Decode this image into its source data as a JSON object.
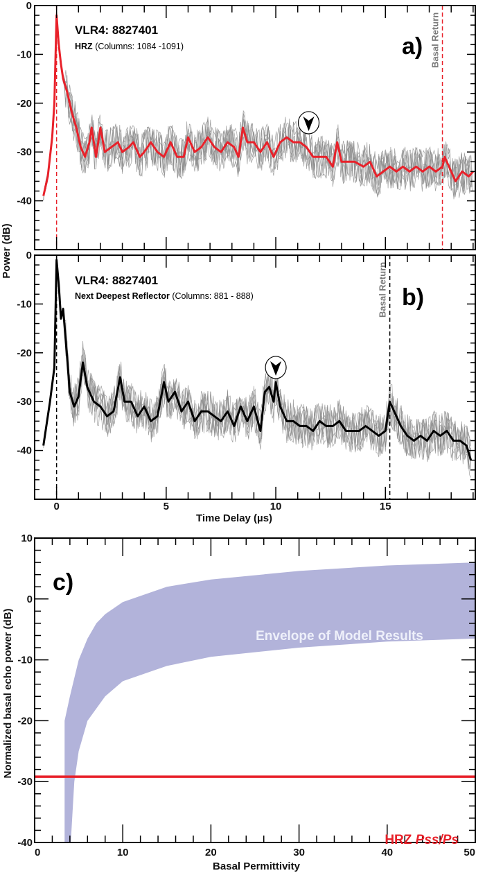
{
  "ylabel_shared": "Power (dB)",
  "xlabel_time": "Time Delay (µs)",
  "colors": {
    "red": "#e8212a",
    "black": "#000000",
    "grey": "#8a8a8a",
    "envelope": "#b2b3da",
    "basal_gray": "#7a7a7a"
  },
  "chart_data": [
    {
      "type": "line",
      "panel": "a)",
      "title": "VLR4: 8827401",
      "subtitle_bold": "HRZ",
      "subtitle": "(Columns: 1084 -1091)",
      "xlabel": "Time Delay (µs)",
      "ylabel": "Power (dB)",
      "xlim": [
        -1,
        19.1
      ],
      "ylim": [
        -50,
        0
      ],
      "yticks": [
        0,
        -10,
        -20,
        -30,
        -40
      ],
      "annotation": "Basal Return",
      "basal_return_x": 17.6,
      "surface_x": 0,
      "arrow_marker": [
        11.5,
        -24
      ],
      "n_individual_traces": 8,
      "mean_series": {
        "name": "mean",
        "x": [
          -0.6,
          -0.4,
          -0.2,
          -0.1,
          0,
          0.1,
          0.2,
          0.3,
          0.5,
          0.7,
          0.9,
          1.1,
          1.3,
          1.5,
          1.6,
          1.8,
          2.0,
          2.2,
          2.5,
          2.8,
          3.0,
          3.3,
          3.5,
          3.8,
          4.0,
          4.3,
          4.6,
          4.9,
          5.2,
          5.5,
          5.8,
          6.0,
          6.3,
          6.6,
          6.9,
          7.2,
          7.5,
          7.8,
          8.1,
          8.3,
          8.5,
          8.7,
          9.0,
          9.3,
          9.6,
          9.9,
          10.2,
          10.5,
          10.8,
          11.1,
          11.4,
          11.7,
          12.0,
          12.3,
          12.6,
          12.8,
          13.0,
          13.3,
          13.6,
          14.0,
          14.3,
          14.6,
          14.9,
          15.2,
          15.5,
          15.8,
          16.1,
          16.4,
          16.7,
          17.0,
          17.3,
          17.6,
          17.7,
          17.9,
          18.2,
          18.5,
          18.8,
          19.0
        ],
        "y": [
          -39,
          -35,
          -27,
          -20,
          -2,
          -8,
          -12,
          -15,
          -18,
          -22,
          -25,
          -29,
          -31,
          -28,
          -25,
          -31,
          -25,
          -30,
          -29,
          -28,
          -30,
          -29,
          -28,
          -31,
          -30,
          -28,
          -30,
          -31,
          -28,
          -31,
          -31,
          -27,
          -30,
          -29,
          -27,
          -29,
          -30,
          -28,
          -29,
          -31,
          -25,
          -28,
          -28,
          -30,
          -28,
          -31,
          -28,
          -27,
          -28,
          -28,
          -29,
          -31,
          -31,
          -31,
          -33,
          -28,
          -32,
          -32,
          -32,
          -33,
          -32,
          -35,
          -34,
          -33,
          -34,
          -33,
          -34,
          -33,
          -34,
          -33,
          -34,
          -33,
          -31,
          -33,
          -36,
          -34,
          -35,
          -34
        ]
      }
    },
    {
      "type": "line",
      "panel": "b)",
      "title": "VLR4: 8827401",
      "subtitle_bold": "Next Deepest Reflector",
      "subtitle": "(Columns: 881 - 888)",
      "xlabel": "Time Delay (µs)",
      "ylabel": "Power (dB)",
      "xlim": [
        -1,
        19.1
      ],
      "ylim": [
        -50,
        0
      ],
      "yticks": [
        0,
        -10,
        -20,
        -30,
        -40
      ],
      "xticks": [
        0,
        5,
        10,
        15
      ],
      "annotation": "Basal Return",
      "basal_return_x": 15.2,
      "surface_x": 0,
      "arrow_marker": [
        10,
        -23
      ],
      "n_individual_traces": 8,
      "mean_series": {
        "name": "mean",
        "x": [
          -0.6,
          -0.3,
          -0.1,
          0,
          0.1,
          0.2,
          0.3,
          0.5,
          0.6,
          0.8,
          1.0,
          1.2,
          1.4,
          1.7,
          2.0,
          2.3,
          2.6,
          2.9,
          3.1,
          3.4,
          3.7,
          4.0,
          4.3,
          4.6,
          4.9,
          5.1,
          5.4,
          5.7,
          6.0,
          6.3,
          6.6,
          6.9,
          7.2,
          7.5,
          7.8,
          8.1,
          8.4,
          8.7,
          9.0,
          9.3,
          9.5,
          9.7,
          9.9,
          10.0,
          10.2,
          10.5,
          10.8,
          11.1,
          11.4,
          11.7,
          12.0,
          12.3,
          12.6,
          12.9,
          13.2,
          13.5,
          13.8,
          14.1,
          14.4,
          14.7,
          15.0,
          15.2,
          15.4,
          15.7,
          16.0,
          16.3,
          16.6,
          16.9,
          17.2,
          17.5,
          17.8,
          18.1,
          18.4,
          18.7,
          18.9
        ],
        "y": [
          -39,
          -30,
          -23,
          -1,
          -6,
          -13,
          -11,
          -22,
          -28,
          -31,
          -29,
          -22,
          -27,
          -30,
          -31,
          -33,
          -32,
          -25,
          -30,
          -30,
          -33,
          -31,
          -34,
          -33,
          -26,
          -30,
          -28,
          -32,
          -30,
          -34,
          -32,
          -32,
          -33,
          -34,
          -32,
          -35,
          -31,
          -34,
          -31,
          -36,
          -28,
          -27,
          -30,
          -26,
          -31,
          -34,
          -34,
          -35,
          -35,
          -36,
          -34,
          -35,
          -35,
          -34,
          -36,
          -36,
          -36,
          -35,
          -36,
          -37,
          -36,
          -30,
          -32,
          -35,
          -37,
          -38,
          -37,
          -38,
          -36,
          -37,
          -36,
          -38,
          -38,
          -39,
          -42
        ]
      }
    },
    {
      "type": "area",
      "panel": "c)",
      "xlabel": "Basal Permittivity",
      "ylabel": "Normalized basal echo power (dB)",
      "xlim": [
        0,
        50
      ],
      "ylim": [
        -40,
        10
      ],
      "xticks": [
        0,
        10,
        20,
        30,
        40,
        50
      ],
      "yticks": [
        10,
        0,
        -10,
        -20,
        -30,
        -40
      ],
      "envelope_label": "Envelope of Model Results",
      "upper": {
        "x": [
          3.4,
          4,
          5,
          6,
          7,
          8,
          10,
          15,
          20,
          30,
          40,
          50
        ],
        "y": [
          -20,
          -16,
          -10,
          -6.5,
          -4,
          -2.5,
          -0.5,
          2,
          3.2,
          4.6,
          5.5,
          6
        ]
      },
      "lower": {
        "x": [
          3.4,
          4.1,
          4.5,
          5,
          6,
          8,
          10,
          15,
          20,
          30,
          40,
          50
        ],
        "y": [
          -40,
          -40,
          -30,
          -25,
          -20,
          -16,
          -13.5,
          -11,
          -9.5,
          -8,
          -7,
          -6.5
        ]
      },
      "hline": {
        "label_prefix": "HRZ",
        "label_italic": "Pss/Ps",
        "y": -29.2
      }
    }
  ]
}
